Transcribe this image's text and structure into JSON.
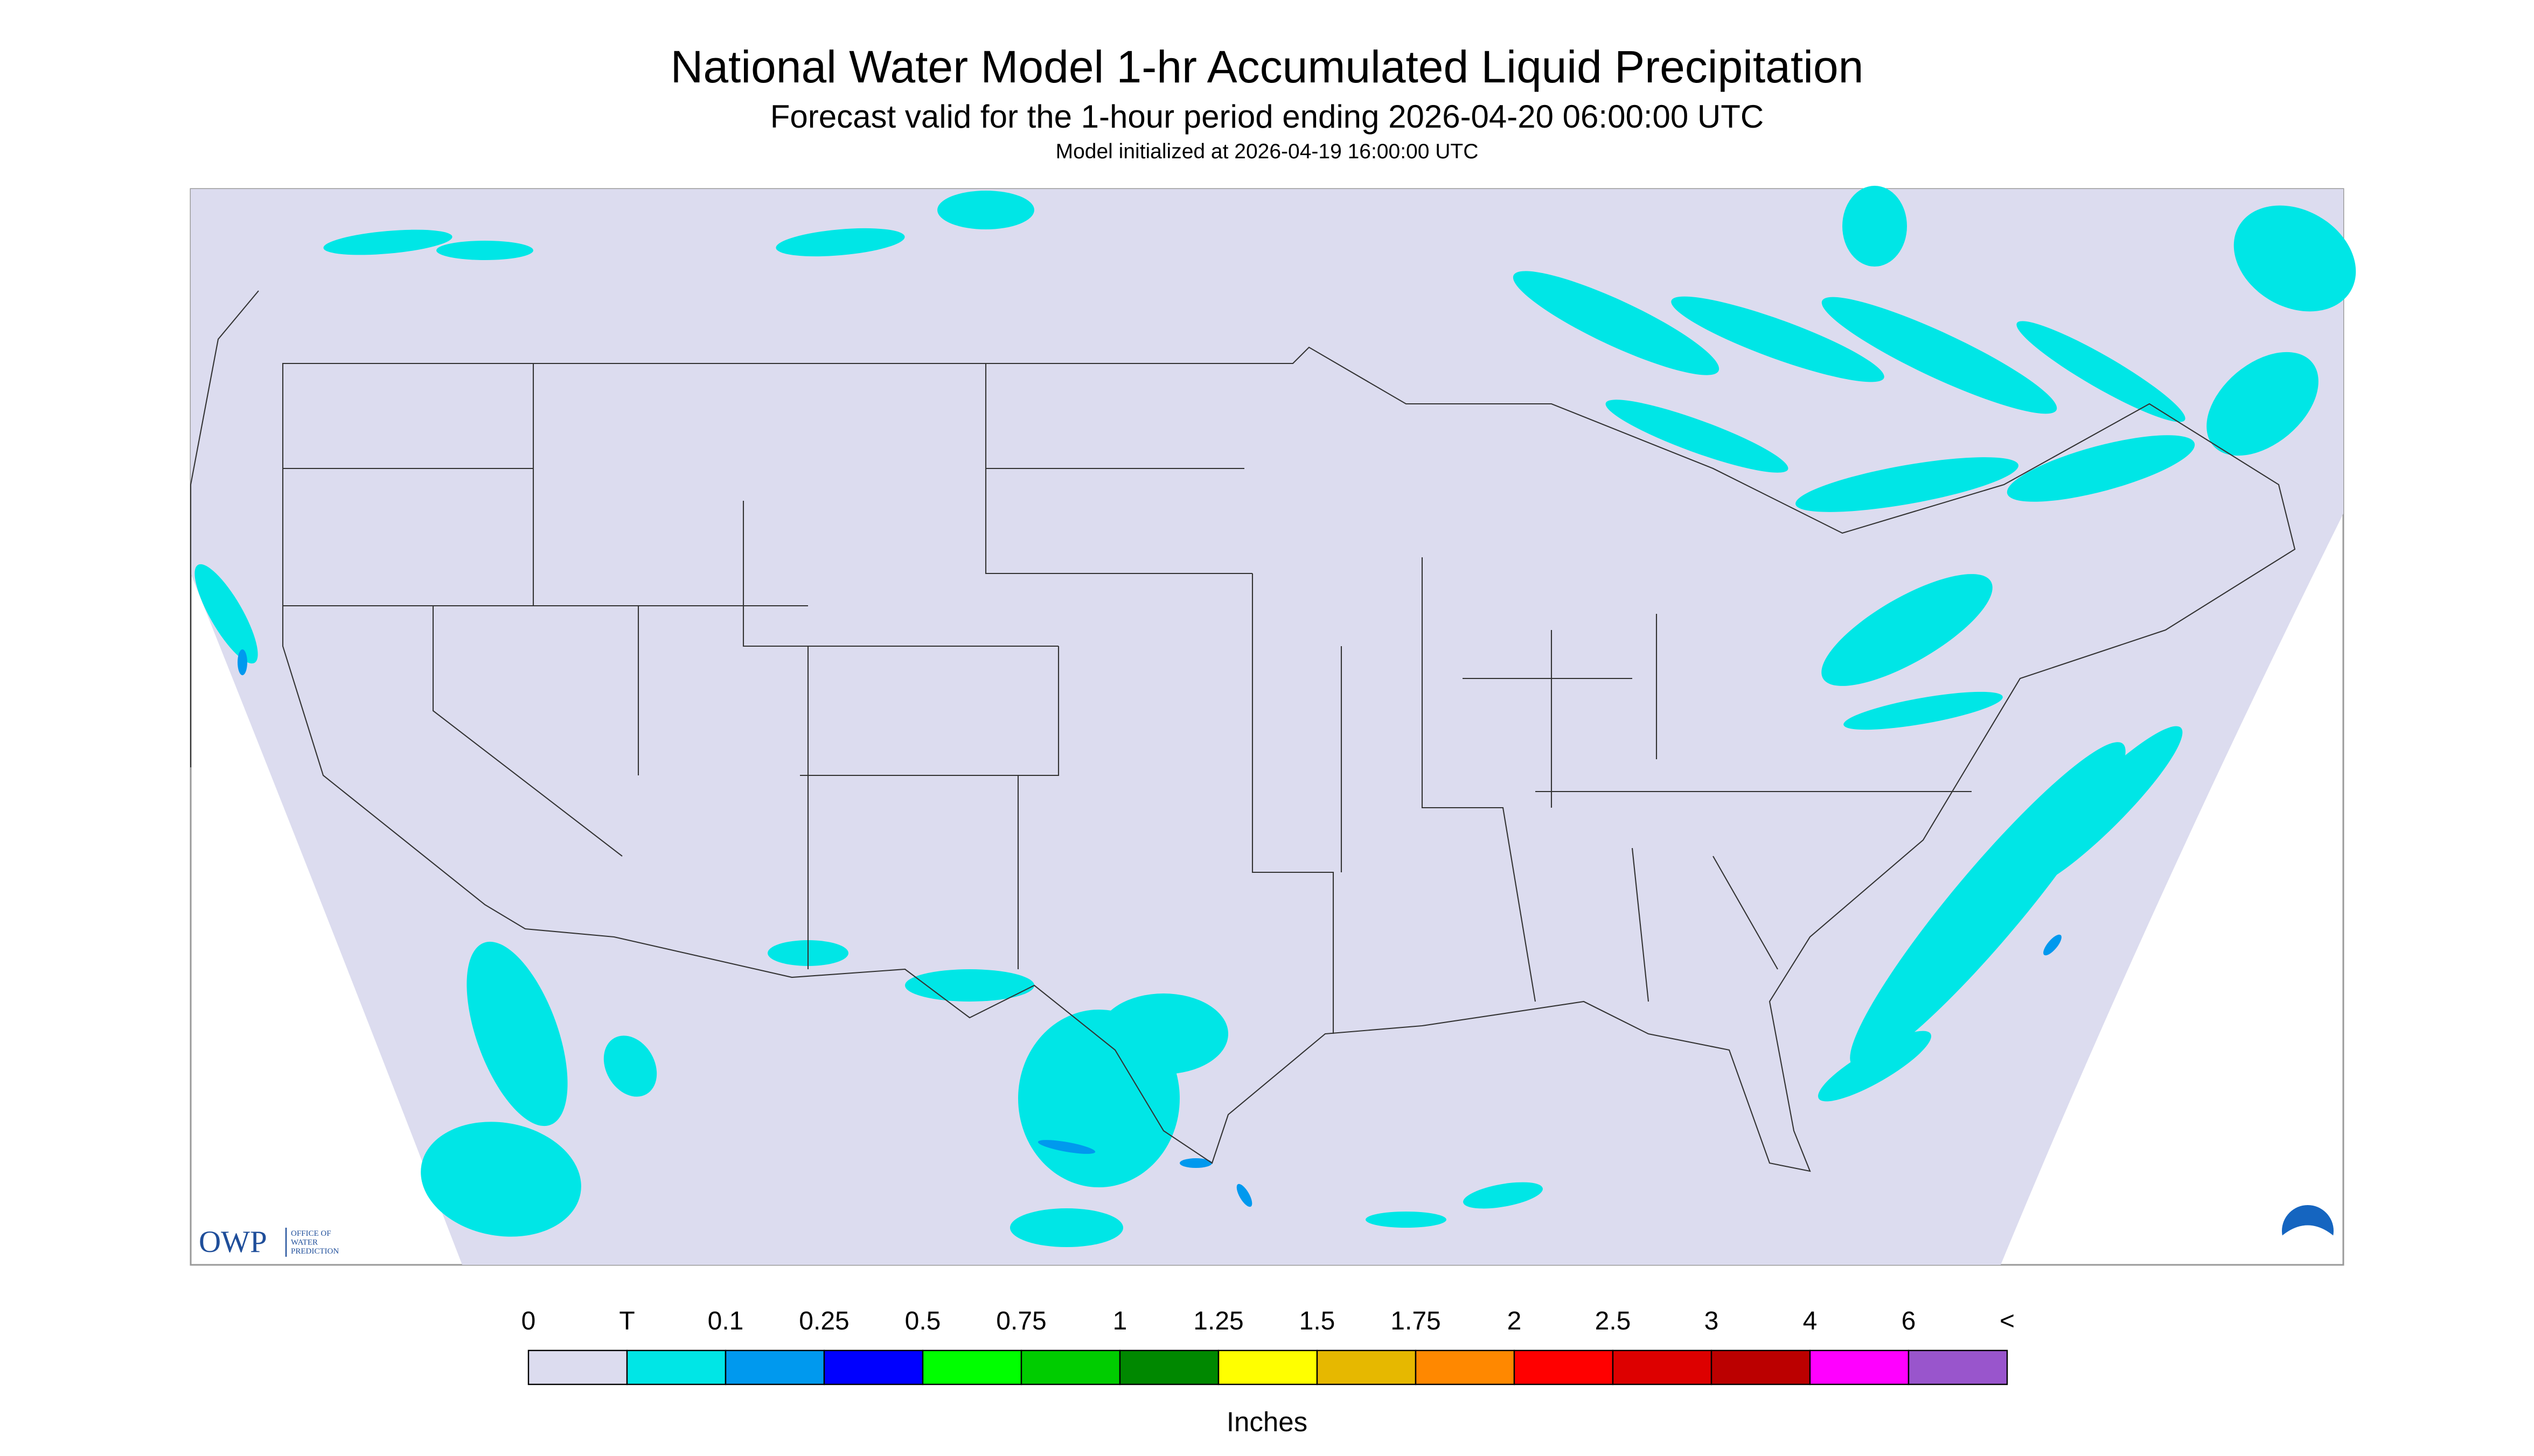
{
  "header": {
    "title": "National Water Model 1-hr Accumulated Liquid Precipitation",
    "subtitle": "Forecast valid for the 1-hour period ending 2026-04-20 06:00:00 UTC",
    "note": "Model initialized at 2026-04-19 16:00:00 UTC"
  },
  "legend": {
    "labels": [
      "0",
      "T",
      "0.1",
      "0.25",
      "0.5",
      "0.75",
      "1",
      "1.25",
      "1.5",
      "1.75",
      "2",
      "2.5",
      "3",
      "4",
      "6",
      "<"
    ],
    "colors": [
      "#dcdcef",
      "#00e6e6",
      "#0099ee",
      "#0000ff",
      "#00ff00",
      "#00cc00",
      "#008800",
      "#ffff00",
      "#e6b800",
      "#ff8800",
      "#ff0000",
      "#dd0000",
      "#bb0000",
      "#ff00ff",
      "#9955cc"
    ],
    "unit": "Inches"
  },
  "logo": {
    "text": "OWP",
    "subtext": [
      "OFFICE OF",
      "WATER",
      "PREDICTION"
    ]
  }
}
